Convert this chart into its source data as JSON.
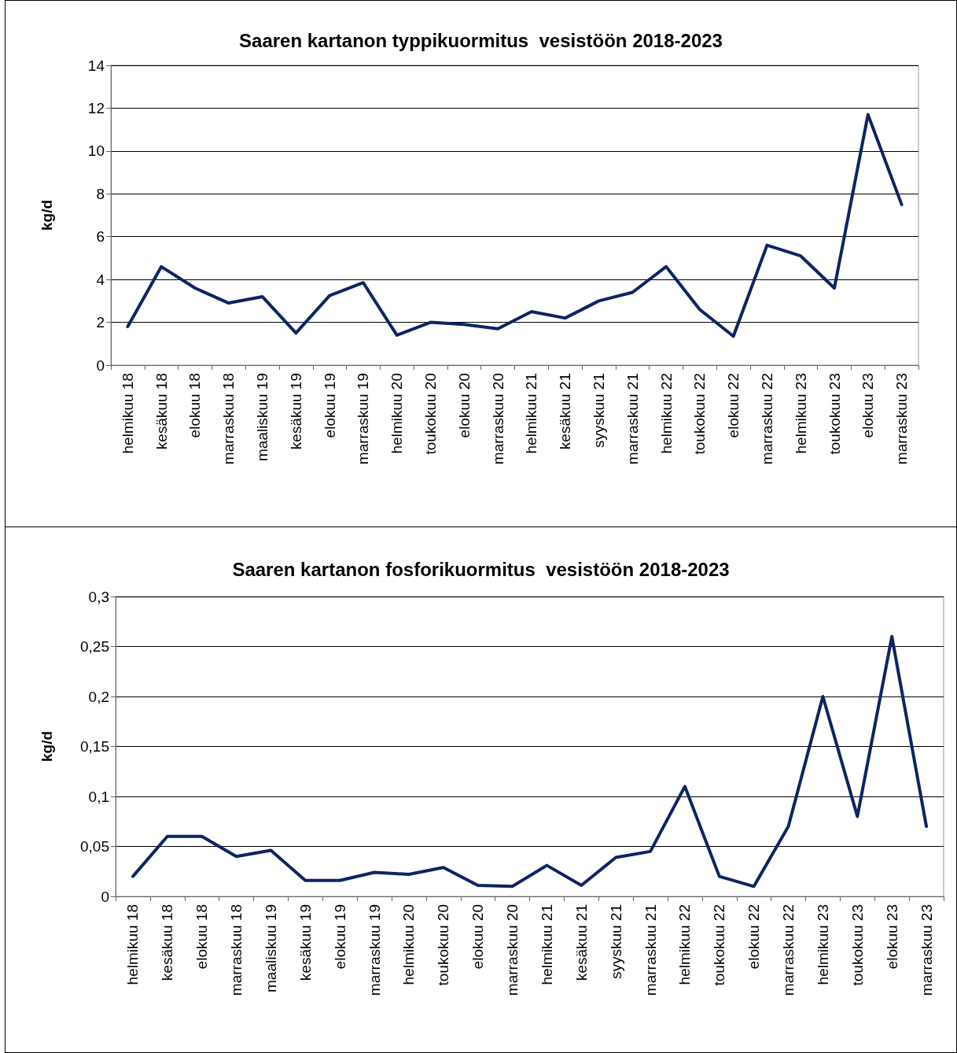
{
  "chart_data": [
    {
      "type": "line",
      "title": "Saaren kartanon typpikuormitus  vesistöön 2018-2023",
      "ylabel": "kg/d",
      "categories": [
        "helmikuu 18",
        "kesäkuu 18",
        "elokuu 18",
        "marraskuu 18",
        "maaliskuu 19",
        "kesäkuu 19",
        "elokuu 19",
        "marraskuu 19",
        "helmikuu 20",
        "toukokuu 20",
        "elokuu 20",
        "marraskuu 20",
        "helmikuu 21",
        "kesäkuu 21",
        "syyskuu 21",
        "marraskuu 21",
        "helmikuu 22",
        "toukokuu 22",
        "elokuu 22",
        "marraskuu 22",
        "helmikuu 23",
        "toukokuu 23",
        "elokuu 23",
        "marraskuu 23"
      ],
      "series": [
        {
          "color": "#0d2463",
          "values": [
            1.8,
            4.6,
            3.6,
            2.9,
            3.2,
            1.5,
            3.25,
            3.85,
            1.4,
            2.0,
            1.9,
            1.7,
            2.5,
            2.2,
            3.0,
            3.4,
            4.6,
            2.6,
            1.35,
            5.6,
            5.1,
            3.6,
            11.7,
            7.5
          ]
        }
      ],
      "ylim": [
        0,
        14
      ],
      "yticks": [
        0,
        2,
        4,
        6,
        8,
        10,
        12,
        14
      ],
      "grid": "y",
      "marker": "none",
      "line_style": "solid"
    },
    {
      "type": "line",
      "title": "Saaren kartanon fosforikuormitus  vesistöön 2018-2023",
      "ylabel": "kg/d",
      "categories": [
        "helmikuu 18",
        "kesäkuu 18",
        "elokuu 18",
        "marraskuu 18",
        "maaliskuu 19",
        "kesäkuu 19",
        "elokuu 19",
        "marraskuu 19",
        "helmikuu 20",
        "toukokuu 20",
        "elokuu 20",
        "marraskuu 20",
        "helmikuu 21",
        "kesäkuu 21",
        "syyskuu 21",
        "marraskuu 21",
        "helmikuu 22",
        "toukokuu 22",
        "elokuu 22",
        "marraskuu 22",
        "helmikuu 23",
        "toukokuu 23",
        "elokuu 23",
        "marraskuu 23"
      ],
      "series": [
        {
          "color": "#0d2463",
          "values": [
            0.02,
            0.06,
            0.06,
            0.04,
            0.046,
            0.016,
            0.016,
            0.024,
            0.022,
            0.029,
            0.011,
            0.01,
            0.031,
            0.011,
            0.039,
            0.045,
            0.11,
            0.02,
            0.01,
            0.07,
            0.2,
            0.08,
            0.26,
            0.07
          ]
        }
      ],
      "ylim": [
        0,
        0.3
      ],
      "yticks": [
        0,
        {
          "value": 0.05,
          "label": "0,05"
        },
        {
          "value": 0.1,
          "label": "0,1"
        },
        {
          "value": 0.15,
          "label": "0,15"
        },
        {
          "value": 0.2,
          "label": "0,2"
        },
        {
          "value": 0.25,
          "label": "0,25"
        },
        {
          "value": 0.3,
          "label": "0,3"
        }
      ],
      "grid": "y",
      "marker": "none",
      "line_style": "solid"
    }
  ]
}
